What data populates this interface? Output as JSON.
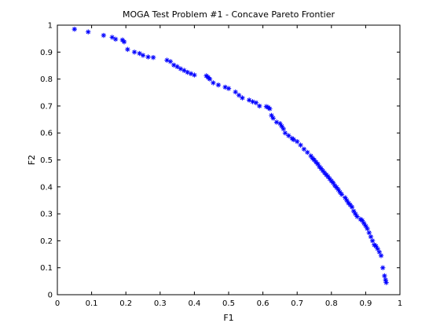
{
  "chart_data": {
    "type": "scatter",
    "title": "MOGA Test Problem #1 - Concave Pareto Frontier",
    "xlabel": "F1",
    "ylabel": "F2",
    "xlim": [
      0,
      1
    ],
    "ylim": [
      0,
      1
    ],
    "xticks": [
      "0",
      "0.1",
      "0.2",
      "0.3",
      "0.4",
      "0.5",
      "0.6",
      "0.7",
      "0.8",
      "0.9",
      "1"
    ],
    "yticks": [
      "0",
      "0.1",
      "0.2",
      "0.3",
      "0.4",
      "0.5",
      "0.6",
      "0.7",
      "0.8",
      "0.9",
      "1"
    ],
    "grid": false,
    "marker": "*",
    "color": "#0000ff",
    "series": [
      {
        "points": [
          [
            0.05,
            0.985
          ],
          [
            0.09,
            0.975
          ],
          [
            0.135,
            0.962
          ],
          [
            0.16,
            0.955
          ],
          [
            0.17,
            0.948
          ],
          [
            0.19,
            0.945
          ],
          [
            0.195,
            0.938
          ],
          [
            0.205,
            0.91
          ],
          [
            0.225,
            0.9
          ],
          [
            0.24,
            0.895
          ],
          [
            0.25,
            0.888
          ],
          [
            0.265,
            0.882
          ],
          [
            0.28,
            0.88
          ],
          [
            0.32,
            0.87
          ],
          [
            0.33,
            0.865
          ],
          [
            0.34,
            0.852
          ],
          [
            0.35,
            0.846
          ],
          [
            0.36,
            0.838
          ],
          [
            0.37,
            0.832
          ],
          [
            0.38,
            0.825
          ],
          [
            0.39,
            0.82
          ],
          [
            0.4,
            0.815
          ],
          [
            0.435,
            0.812
          ],
          [
            0.44,
            0.806
          ],
          [
            0.445,
            0.8
          ],
          [
            0.455,
            0.786
          ],
          [
            0.47,
            0.778
          ],
          [
            0.49,
            0.77
          ],
          [
            0.5,
            0.765
          ],
          [
            0.52,
            0.752
          ],
          [
            0.53,
            0.74
          ],
          [
            0.54,
            0.73
          ],
          [
            0.56,
            0.722
          ],
          [
            0.57,
            0.716
          ],
          [
            0.58,
            0.712
          ],
          [
            0.59,
            0.7
          ],
          [
            0.61,
            0.698
          ],
          [
            0.615,
            0.695
          ],
          [
            0.62,
            0.69
          ],
          [
            0.625,
            0.665
          ],
          [
            0.63,
            0.655
          ],
          [
            0.64,
            0.64
          ],
          [
            0.65,
            0.635
          ],
          [
            0.655,
            0.625
          ],
          [
            0.66,
            0.615
          ],
          [
            0.665,
            0.6
          ],
          [
            0.675,
            0.59
          ],
          [
            0.685,
            0.58
          ],
          [
            0.69,
            0.575
          ],
          [
            0.7,
            0.568
          ],
          [
            0.71,
            0.555
          ],
          [
            0.72,
            0.54
          ],
          [
            0.73,
            0.528
          ],
          [
            0.74,
            0.515
          ],
          [
            0.745,
            0.506
          ],
          [
            0.75,
            0.5
          ],
          [
            0.755,
            0.492
          ],
          [
            0.76,
            0.485
          ],
          [
            0.765,
            0.475
          ],
          [
            0.77,
            0.468
          ],
          [
            0.775,
            0.46
          ],
          [
            0.78,
            0.452
          ],
          [
            0.785,
            0.445
          ],
          [
            0.79,
            0.438
          ],
          [
            0.795,
            0.43
          ],
          [
            0.8,
            0.422
          ],
          [
            0.805,
            0.415
          ],
          [
            0.81,
            0.405
          ],
          [
            0.815,
            0.398
          ],
          [
            0.82,
            0.39
          ],
          [
            0.825,
            0.38
          ],
          [
            0.83,
            0.372
          ],
          [
            0.84,
            0.36
          ],
          [
            0.845,
            0.35
          ],
          [
            0.85,
            0.34
          ],
          [
            0.855,
            0.333
          ],
          [
            0.86,
            0.325
          ],
          [
            0.865,
            0.31
          ],
          [
            0.87,
            0.3
          ],
          [
            0.875,
            0.29
          ],
          [
            0.885,
            0.28
          ],
          [
            0.89,
            0.275
          ],
          [
            0.895,
            0.265
          ],
          [
            0.9,
            0.255
          ],
          [
            0.905,
            0.245
          ],
          [
            0.91,
            0.23
          ],
          [
            0.915,
            0.215
          ],
          [
            0.92,
            0.2
          ],
          [
            0.925,
            0.185
          ],
          [
            0.93,
            0.18
          ],
          [
            0.935,
            0.17
          ],
          [
            0.94,
            0.158
          ],
          [
            0.945,
            0.145
          ],
          [
            0.95,
            0.1
          ],
          [
            0.955,
            0.07
          ],
          [
            0.958,
            0.055
          ],
          [
            0.96,
            0.045
          ]
        ]
      }
    ]
  }
}
